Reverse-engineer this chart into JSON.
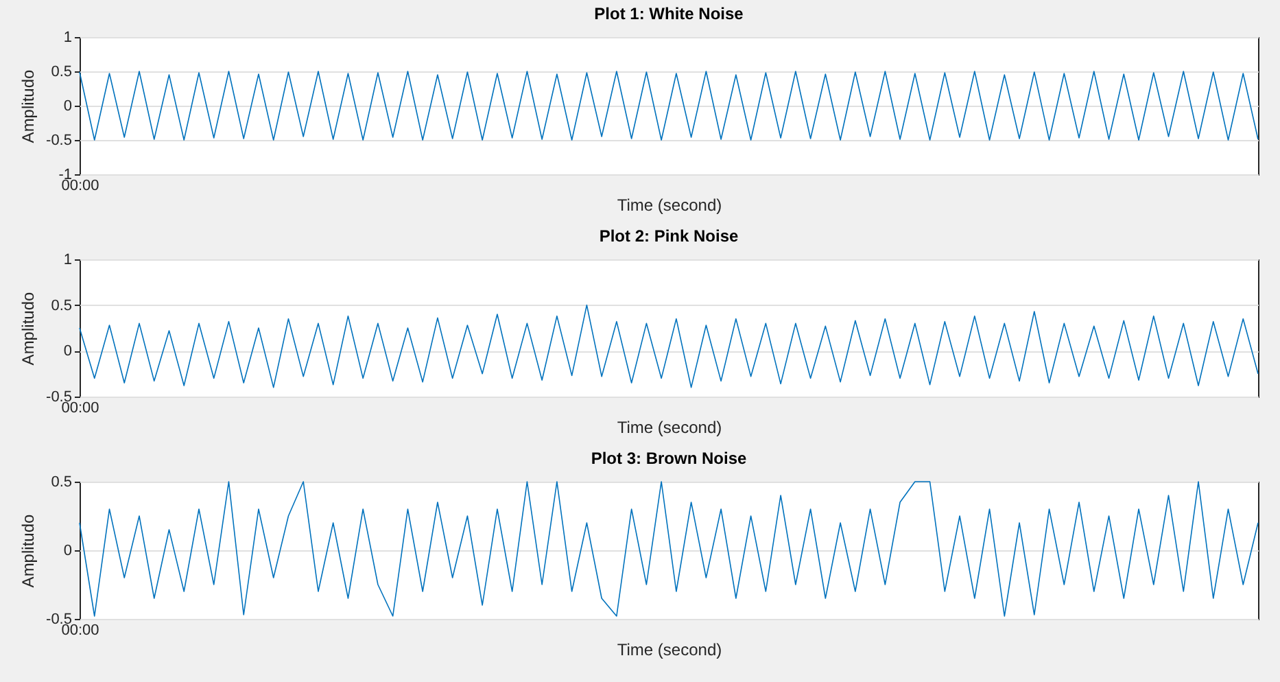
{
  "chart_data": [
    {
      "type": "line",
      "title": "Plot 1: White Noise",
      "xlabel": "Time (second)",
      "ylabel": "Amplitudo",
      "categories": [
        "00:00",
        null,
        null,
        null,
        null,
        null,
        null,
        null,
        null,
        null,
        null,
        null,
        null,
        null,
        null,
        null,
        null,
        null,
        null,
        null,
        null,
        null,
        null,
        null,
        null,
        null,
        null,
        null,
        null,
        null,
        null,
        null,
        null,
        null,
        null,
        null,
        null,
        null,
        null,
        null,
        null,
        null,
        null,
        null,
        null,
        null,
        null,
        null,
        null,
        null,
        null,
        null,
        null,
        null,
        null,
        null,
        null,
        null,
        null,
        null,
        null,
        null,
        null,
        null,
        null,
        null,
        null,
        null,
        null,
        null,
        null,
        null,
        null,
        null,
        null,
        null,
        null,
        null,
        null,
        null
      ],
      "color": "#0072bd",
      "ylim": [
        -1,
        1
      ],
      "yticks": [
        -1,
        -0.5,
        0,
        0.5,
        1
      ],
      "grid": "y",
      "values": [
        0.49,
        -0.5,
        0.47,
        -0.46,
        0.5,
        -0.49,
        0.45,
        -0.5,
        0.48,
        -0.47,
        0.5,
        -0.48,
        0.46,
        -0.5,
        0.49,
        -0.45,
        0.5,
        -0.49,
        0.47,
        -0.5,
        0.48,
        -0.46,
        0.5,
        -0.5,
        0.45,
        -0.48,
        0.49,
        -0.5,
        0.47,
        -0.47,
        0.5,
        -0.49,
        0.46,
        -0.5,
        0.48,
        -0.45,
        0.5,
        -0.48,
        0.49,
        -0.5,
        0.47,
        -0.46,
        0.5,
        -0.49,
        0.45,
        -0.5,
        0.48,
        -0.47,
        0.5,
        -0.48,
        0.46,
        -0.5,
        0.49,
        -0.45,
        0.5,
        -0.49,
        0.47,
        -0.5,
        0.48,
        -0.46,
        0.5,
        -0.5,
        0.45,
        -0.48,
        0.49,
        -0.5,
        0.47,
        -0.47,
        0.5,
        -0.49,
        0.46,
        -0.5,
        0.48,
        -0.45,
        0.5,
        -0.48,
        0.49,
        -0.5,
        0.47,
        -0.49
      ]
    },
    {
      "type": "line",
      "title": "Plot 2: Pink Noise",
      "xlabel": "Time (second)",
      "ylabel": "Amplitudo",
      "categories": [
        "00:00",
        null,
        null,
        null,
        null,
        null,
        null,
        null,
        null,
        null,
        null,
        null,
        null,
        null,
        null,
        null,
        null,
        null,
        null,
        null,
        null,
        null,
        null,
        null,
        null,
        null,
        null,
        null,
        null,
        null,
        null,
        null,
        null,
        null,
        null,
        null,
        null,
        null,
        null,
        null,
        null,
        null,
        null,
        null,
        null,
        null,
        null,
        null,
        null,
        null,
        null,
        null,
        null,
        null,
        null,
        null,
        null,
        null,
        null,
        null,
        null,
        null,
        null,
        null,
        null,
        null,
        null,
        null,
        null,
        null,
        null,
        null,
        null,
        null,
        null,
        null,
        null,
        null,
        null,
        null
      ],
      "color": "#0072bd",
      "ylim": [
        -0.5,
        1
      ],
      "yticks": [
        -0.5,
        0,
        0.5,
        1
      ],
      "grid": "y",
      "values": [
        0.25,
        -0.3,
        0.28,
        -0.35,
        0.3,
        -0.33,
        0.22,
        -0.38,
        0.3,
        -0.3,
        0.32,
        -0.35,
        0.25,
        -0.4,
        0.35,
        -0.28,
        0.3,
        -0.37,
        0.38,
        -0.3,
        0.3,
        -0.33,
        0.25,
        -0.34,
        0.36,
        -0.3,
        0.28,
        -0.25,
        0.4,
        -0.3,
        0.3,
        -0.32,
        0.38,
        -0.27,
        0.5,
        -0.28,
        0.32,
        -0.35,
        0.3,
        -0.3,
        0.35,
        -0.4,
        0.28,
        -0.33,
        0.35,
        -0.28,
        0.3,
        -0.36,
        0.3,
        -0.3,
        0.27,
        -0.34,
        0.33,
        -0.27,
        0.35,
        -0.3,
        0.3,
        -0.37,
        0.32,
        -0.28,
        0.38,
        -0.3,
        0.3,
        -0.33,
        0.43,
        -0.35,
        0.3,
        -0.28,
        0.27,
        -0.3,
        0.33,
        -0.32,
        0.38,
        -0.3,
        0.3,
        -0.38,
        0.32,
        -0.28,
        0.35,
        -0.25
      ]
    },
    {
      "type": "line",
      "title": "Plot 3: Brown Noise",
      "xlabel": "Time (second)",
      "ylabel": "Amplitudo",
      "categories": [
        "00:00",
        null,
        null,
        null,
        null,
        null,
        null,
        null,
        null,
        null,
        null,
        null,
        null,
        null,
        null,
        null,
        null,
        null,
        null,
        null,
        null,
        null,
        null,
        null,
        null,
        null,
        null,
        null,
        null,
        null,
        null,
        null,
        null,
        null,
        null,
        null,
        null,
        null,
        null,
        null,
        null,
        null,
        null,
        null,
        null,
        null,
        null,
        null,
        null,
        null,
        null,
        null,
        null,
        null,
        null,
        null,
        null,
        null,
        null,
        null,
        null,
        null,
        null,
        null,
        null,
        null,
        null,
        null,
        null,
        null,
        null,
        null,
        null,
        null,
        null,
        null,
        null,
        null,
        null,
        null
      ],
      "color": "#0072bd",
      "ylim": [
        -0.5,
        0.5
      ],
      "yticks": [
        -0.5,
        0,
        0.5
      ],
      "grid": "y",
      "values": [
        0.2,
        -0.48,
        0.3,
        -0.2,
        0.25,
        -0.35,
        0.15,
        -0.3,
        0.3,
        -0.25,
        0.5,
        -0.47,
        0.3,
        -0.2,
        0.25,
        0.5,
        -0.3,
        0.2,
        -0.35,
        0.3,
        -0.25,
        -0.48,
        0.3,
        -0.3,
        0.35,
        -0.2,
        0.25,
        -0.4,
        0.3,
        -0.3,
        0.5,
        -0.25,
        0.5,
        -0.3,
        0.2,
        -0.35,
        -0.48,
        0.3,
        -0.25,
        0.5,
        -0.3,
        0.35,
        -0.2,
        0.3,
        -0.35,
        0.25,
        -0.3,
        0.4,
        -0.25,
        0.3,
        -0.35,
        0.2,
        -0.3,
        0.3,
        -0.25,
        0.35,
        0.5,
        0.5,
        -0.3,
        0.25,
        -0.35,
        0.3,
        -0.48,
        0.2,
        -0.47,
        0.3,
        -0.25,
        0.35,
        -0.3,
        0.25,
        -0.35,
        0.3,
        -0.25,
        0.4,
        -0.3,
        0.5,
        -0.35,
        0.3,
        -0.25,
        0.2
      ]
    }
  ]
}
